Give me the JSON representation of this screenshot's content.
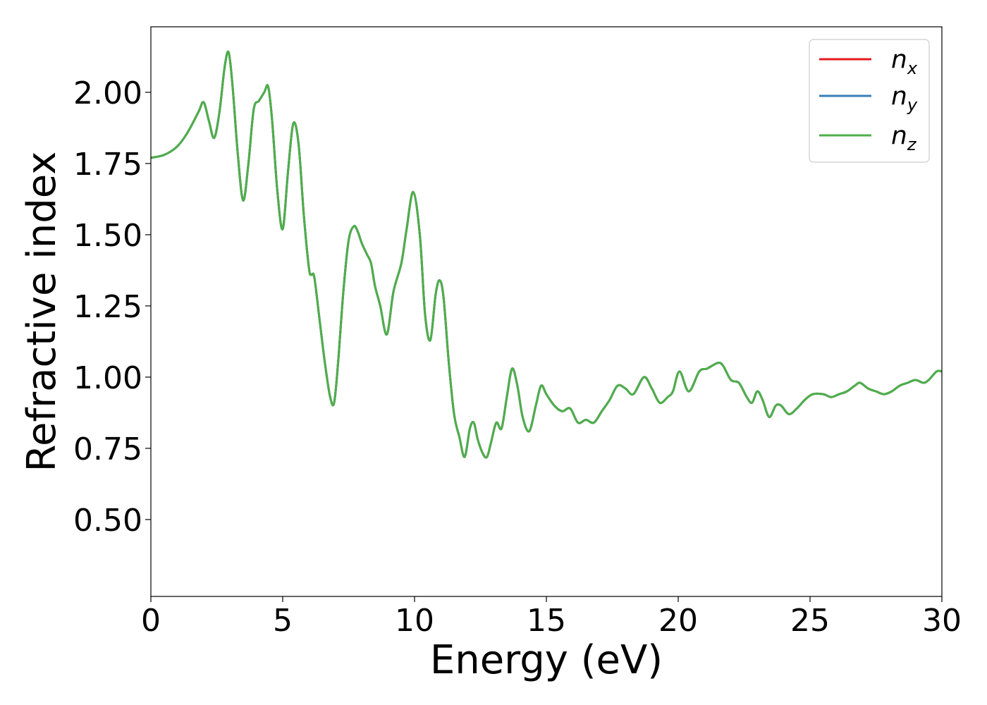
{
  "chart_data": {
    "type": "line",
    "xlabel": "Energy (eV)",
    "ylabel": "Refractive index",
    "xlim": [
      0,
      30
    ],
    "ylim": [
      0.23,
      2.23
    ],
    "xticks": [
      "0",
      "5",
      "10",
      "15",
      "20",
      "25",
      "30"
    ],
    "yticks": [
      "0.50",
      "0.75",
      "1.00",
      "1.25",
      "1.50",
      "1.75",
      "2.00"
    ],
    "grid": false,
    "legend_position": "top-right",
    "x": [
      0,
      0.5,
      1.0,
      1.4,
      1.8,
      2.0,
      2.2,
      2.4,
      2.6,
      2.8,
      2.95,
      3.1,
      3.3,
      3.5,
      3.7,
      3.9,
      4.1,
      4.3,
      4.45,
      4.6,
      4.8,
      5.0,
      5.2,
      5.4,
      5.6,
      5.8,
      6.0,
      6.1,
      6.2,
      6.4,
      6.6,
      6.8,
      6.95,
      7.1,
      7.3,
      7.5,
      7.7,
      7.85,
      8.0,
      8.2,
      8.35,
      8.5,
      8.7,
      8.95,
      9.2,
      9.5,
      9.7,
      9.95,
      10.2,
      10.4,
      10.6,
      10.8,
      10.95,
      11.1,
      11.3,
      11.5,
      11.7,
      11.9,
      12.1,
      12.25,
      12.4,
      12.6,
      12.75,
      12.9,
      13.1,
      13.3,
      13.5,
      13.7,
      13.9,
      14.1,
      14.35,
      14.6,
      14.8,
      15.0,
      15.3,
      15.6,
      15.9,
      16.2,
      16.5,
      16.8,
      17.1,
      17.4,
      17.7,
      18.0,
      18.3,
      18.7,
      19.0,
      19.3,
      19.6,
      19.8,
      20.05,
      20.4,
      20.8,
      21.1,
      21.5,
      21.7,
      22.0,
      22.3,
      22.6,
      22.8,
      23.0,
      23.2,
      23.45,
      23.7,
      23.9,
      24.2,
      24.5,
      24.8,
      25.1,
      25.5,
      25.8,
      26.1,
      26.4,
      26.7,
      26.9,
      27.2,
      27.5,
      27.8,
      28.1,
      28.4,
      28.7,
      29.0,
      29.3,
      29.5,
      29.8,
      30.0
    ],
    "series": [
      {
        "name": "n",
        "subscript": "x",
        "color": "#e41a1c",
        "values": [
          1.77,
          1.78,
          1.81,
          1.86,
          1.93,
          1.965,
          1.9,
          1.84,
          1.93,
          2.09,
          2.14,
          2.02,
          1.78,
          1.62,
          1.75,
          1.94,
          1.97,
          2.0,
          2.02,
          1.9,
          1.65,
          1.52,
          1.72,
          1.89,
          1.82,
          1.57,
          1.38,
          1.36,
          1.35,
          1.2,
          1.05,
          0.93,
          0.91,
          1.05,
          1.3,
          1.48,
          1.53,
          1.51,
          1.47,
          1.43,
          1.4,
          1.32,
          1.25,
          1.15,
          1.3,
          1.4,
          1.52,
          1.65,
          1.5,
          1.22,
          1.13,
          1.29,
          1.34,
          1.28,
          1.05,
          0.87,
          0.79,
          0.72,
          0.82,
          0.84,
          0.78,
          0.73,
          0.72,
          0.77,
          0.84,
          0.82,
          0.93,
          1.03,
          0.97,
          0.86,
          0.81,
          0.9,
          0.97,
          0.94,
          0.9,
          0.88,
          0.89,
          0.84,
          0.85,
          0.84,
          0.88,
          0.92,
          0.97,
          0.96,
          0.94,
          1.0,
          0.96,
          0.91,
          0.93,
          0.95,
          1.02,
          0.95,
          1.02,
          1.03,
          1.05,
          1.04,
          0.99,
          0.98,
          0.93,
          0.91,
          0.95,
          0.92,
          0.86,
          0.9,
          0.9,
          0.87,
          0.89,
          0.92,
          0.94,
          0.94,
          0.93,
          0.94,
          0.95,
          0.97,
          0.98,
          0.96,
          0.95,
          0.94,
          0.95,
          0.97,
          0.98,
          0.99,
          0.98,
          0.99,
          1.02,
          1.02
        ]
      },
      {
        "name": "n",
        "subscript": "y",
        "color": "#377eb8",
        "values": [
          1.77,
          1.78,
          1.81,
          1.86,
          1.93,
          1.965,
          1.9,
          1.84,
          1.93,
          2.09,
          2.14,
          2.02,
          1.78,
          1.62,
          1.75,
          1.94,
          1.97,
          2.0,
          2.02,
          1.9,
          1.65,
          1.52,
          1.72,
          1.89,
          1.82,
          1.57,
          1.38,
          1.36,
          1.35,
          1.2,
          1.05,
          0.93,
          0.91,
          1.05,
          1.3,
          1.48,
          1.53,
          1.51,
          1.47,
          1.43,
          1.4,
          1.32,
          1.25,
          1.15,
          1.3,
          1.4,
          1.52,
          1.65,
          1.5,
          1.22,
          1.13,
          1.29,
          1.34,
          1.28,
          1.05,
          0.87,
          0.79,
          0.72,
          0.82,
          0.84,
          0.78,
          0.73,
          0.72,
          0.77,
          0.84,
          0.82,
          0.93,
          1.03,
          0.97,
          0.86,
          0.81,
          0.9,
          0.97,
          0.94,
          0.9,
          0.88,
          0.89,
          0.84,
          0.85,
          0.84,
          0.88,
          0.92,
          0.97,
          0.96,
          0.94,
          1.0,
          0.96,
          0.91,
          0.93,
          0.95,
          1.02,
          0.95,
          1.02,
          1.03,
          1.05,
          1.04,
          0.99,
          0.98,
          0.93,
          0.91,
          0.95,
          0.92,
          0.86,
          0.9,
          0.9,
          0.87,
          0.89,
          0.92,
          0.94,
          0.94,
          0.93,
          0.94,
          0.95,
          0.97,
          0.98,
          0.96,
          0.95,
          0.94,
          0.95,
          0.97,
          0.98,
          0.99,
          0.98,
          0.99,
          1.02,
          1.02
        ]
      },
      {
        "name": "n",
        "subscript": "z",
        "color": "#4daf4a",
        "values": [
          1.77,
          1.78,
          1.81,
          1.86,
          1.93,
          1.965,
          1.9,
          1.84,
          1.93,
          2.09,
          2.14,
          2.02,
          1.78,
          1.62,
          1.75,
          1.94,
          1.97,
          2.0,
          2.02,
          1.9,
          1.65,
          1.52,
          1.72,
          1.89,
          1.82,
          1.57,
          1.38,
          1.36,
          1.35,
          1.2,
          1.05,
          0.93,
          0.91,
          1.05,
          1.3,
          1.48,
          1.53,
          1.51,
          1.47,
          1.43,
          1.4,
          1.32,
          1.25,
          1.15,
          1.3,
          1.4,
          1.52,
          1.65,
          1.5,
          1.22,
          1.13,
          1.29,
          1.34,
          1.28,
          1.05,
          0.87,
          0.79,
          0.72,
          0.82,
          0.84,
          0.78,
          0.73,
          0.72,
          0.77,
          0.84,
          0.82,
          0.93,
          1.03,
          0.97,
          0.86,
          0.81,
          0.9,
          0.97,
          0.94,
          0.9,
          0.88,
          0.89,
          0.84,
          0.85,
          0.84,
          0.88,
          0.92,
          0.97,
          0.96,
          0.94,
          1.0,
          0.96,
          0.91,
          0.93,
          0.95,
          1.02,
          0.95,
          1.02,
          1.03,
          1.05,
          1.04,
          0.99,
          0.98,
          0.93,
          0.91,
          0.95,
          0.92,
          0.86,
          0.9,
          0.9,
          0.87,
          0.89,
          0.92,
          0.94,
          0.94,
          0.93,
          0.94,
          0.95,
          0.97,
          0.98,
          0.96,
          0.95,
          0.94,
          0.95,
          0.97,
          0.98,
          0.99,
          0.98,
          0.99,
          1.02,
          1.02
        ]
      }
    ]
  }
}
